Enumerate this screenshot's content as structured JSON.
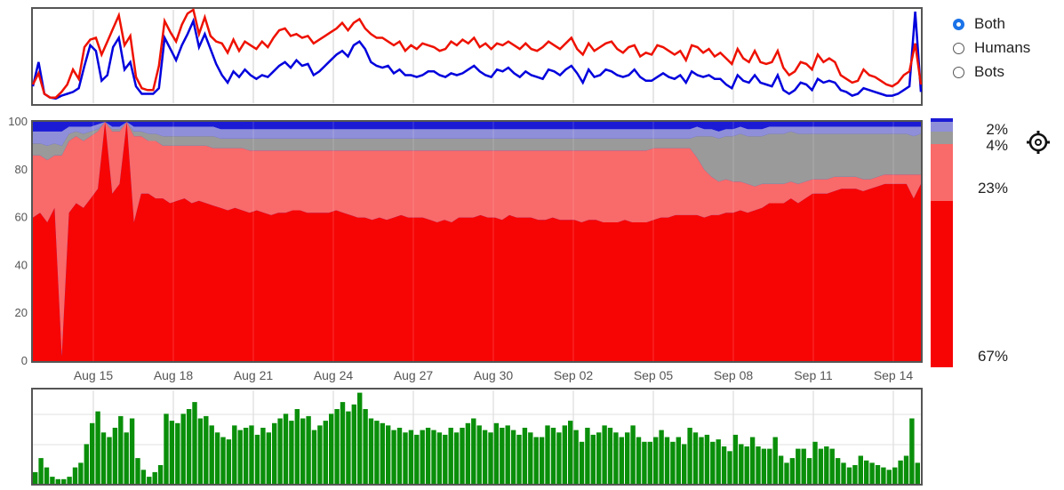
{
  "legend": {
    "options": [
      {
        "label": "Both",
        "selected": true
      },
      {
        "label": "Humans",
        "selected": false
      },
      {
        "label": "Bots",
        "selected": false
      }
    ],
    "percentages": [
      {
        "label": "2%",
        "color": "#1b1bd6"
      },
      {
        "label": "4%",
        "color": "#8f8fd9"
      },
      {
        "label": "23%",
        "color": "#f96a6a"
      },
      {
        "label": "67%",
        "color": "#f70505"
      }
    ],
    "settings_icon": "gear-icon"
  },
  "colors": {
    "dark_blue": "#1b1bd6",
    "light_blue": "#8f8fd9",
    "gray": "#9a9a9a",
    "light_red": "#f96a6a",
    "red": "#f70505",
    "green": "#0a8f0a",
    "overview_blue": "#0000dd",
    "overview_red": "#ee1100"
  },
  "chart_data": [
    {
      "type": "line",
      "id": "overview",
      "x_range": [
        "Aug 12",
        "Sep 15"
      ],
      "series": [
        {
          "id": "blue",
          "values": [
            18,
            44,
            10,
            6,
            5,
            8,
            10,
            12,
            16,
            40,
            62,
            56,
            24,
            30,
            60,
            70,
            36,
            44,
            18,
            10,
            10,
            10,
            16,
            70,
            58,
            46,
            62,
            74,
            88,
            60,
            74,
            58,
            42,
            30,
            22,
            34,
            28,
            36,
            30,
            26,
            30,
            28,
            34,
            40,
            44,
            38,
            46,
            40,
            42,
            30,
            34,
            40,
            46,
            52,
            56,
            50,
            62,
            66,
            58,
            44,
            40,
            38,
            40,
            32,
            36,
            30,
            30,
            28,
            30,
            34,
            34,
            30,
            28,
            32,
            30,
            32,
            36,
            40,
            34,
            30,
            28,
            36,
            34,
            38,
            32,
            28,
            34,
            30,
            28,
            26,
            36,
            34,
            30,
            36,
            40,
            32,
            22,
            36,
            28,
            30,
            36,
            34,
            30,
            28,
            30,
            36,
            28,
            24,
            24,
            28,
            32,
            28,
            26,
            30,
            22,
            34,
            30,
            28,
            30,
            26,
            26,
            20,
            16,
            30,
            24,
            22,
            30,
            22,
            20,
            18,
            30,
            14,
            10,
            14,
            22,
            20,
            14,
            26,
            22,
            24,
            22,
            14,
            12,
            8,
            10,
            16,
            14,
            12,
            10,
            8,
            8,
            10,
            14,
            18,
            98,
            12
          ]
        },
        {
          "id": "red",
          "values": [
            20,
            32,
            10,
            6,
            6,
            12,
            20,
            36,
            26,
            60,
            68,
            70,
            52,
            66,
            80,
            94,
            62,
            72,
            28,
            16,
            14,
            14,
            40,
            88,
            76,
            66,
            84,
            96,
            100,
            74,
            92,
            72,
            66,
            64,
            54,
            68,
            56,
            66,
            62,
            58,
            66,
            60,
            70,
            78,
            80,
            72,
            74,
            70,
            72,
            64,
            68,
            72,
            76,
            80,
            86,
            78,
            86,
            90,
            80,
            74,
            70,
            70,
            66,
            62,
            66,
            56,
            62,
            58,
            64,
            62,
            60,
            56,
            58,
            66,
            62,
            68,
            64,
            70,
            60,
            64,
            58,
            64,
            62,
            66,
            62,
            58,
            64,
            58,
            56,
            60,
            66,
            62,
            58,
            64,
            70,
            58,
            52,
            64,
            56,
            60,
            64,
            66,
            58,
            54,
            60,
            62,
            50,
            54,
            52,
            62,
            60,
            56,
            52,
            56,
            46,
            62,
            60,
            54,
            58,
            50,
            54,
            48,
            42,
            58,
            48,
            44,
            56,
            44,
            42,
            44,
            56,
            38,
            30,
            34,
            44,
            42,
            36,
            52,
            44,
            48,
            44,
            30,
            26,
            22,
            24,
            36,
            30,
            28,
            24,
            20,
            18,
            22,
            30,
            34,
            64,
            20
          ]
        }
      ]
    },
    {
      "type": "area",
      "id": "main",
      "stacked_percent": true,
      "ylim": [
        0,
        100
      ],
      "yticks": [
        0,
        20,
        40,
        60,
        80,
        100
      ],
      "xticks": [
        "Aug 15",
        "Aug 18",
        "Aug 21",
        "Aug 24",
        "Aug 27",
        "Aug 30",
        "Sep 02",
        "Sep 05",
        "Sep 08",
        "Sep 11",
        "Sep 14"
      ],
      "series": [
        {
          "id": "red",
          "values": [
            60,
            62,
            58,
            64,
            2,
            62,
            66,
            64,
            68,
            72,
            100,
            70,
            74,
            100,
            58,
            70,
            70,
            68,
            68,
            66,
            67,
            68,
            66,
            67,
            66,
            65,
            64,
            63,
            64,
            63,
            62,
            63,
            62,
            61,
            62,
            62,
            63,
            63,
            62,
            62,
            62,
            62,
            63,
            62,
            61,
            60,
            60,
            59,
            60,
            59,
            60,
            61,
            60,
            60,
            60,
            59,
            58,
            59,
            58,
            60,
            60,
            60,
            61,
            60,
            60,
            59,
            61,
            60,
            60,
            60,
            59,
            59,
            60,
            59,
            59,
            59,
            58,
            59,
            59,
            58,
            58,
            58,
            59,
            58,
            58,
            58,
            59,
            60,
            60,
            61,
            61,
            61,
            61,
            60,
            61,
            61,
            62,
            62,
            63,
            62,
            63,
            64,
            66,
            66,
            66,
            68,
            66,
            68,
            70,
            70,
            70,
            71,
            72,
            72,
            72,
            71,
            72,
            73,
            74,
            74,
            74,
            74,
            68,
            74
          ]
        },
        {
          "id": "lightred",
          "values": [
            26,
            24,
            26,
            22,
            84,
            30,
            28,
            28,
            26,
            24,
            0,
            26,
            22,
            0,
            36,
            24,
            22,
            24,
            22,
            24,
            23,
            22,
            24,
            23,
            24,
            24,
            25,
            26,
            25,
            26,
            26,
            25,
            26,
            27,
            26,
            26,
            25,
            25,
            26,
            26,
            26,
            26,
            25,
            26,
            27,
            28,
            28,
            29,
            28,
            29,
            28,
            27,
            28,
            28,
            28,
            29,
            30,
            29,
            30,
            28,
            28,
            28,
            27,
            28,
            28,
            29,
            27,
            28,
            28,
            28,
            29,
            29,
            28,
            29,
            29,
            29,
            30,
            29,
            29,
            30,
            30,
            30,
            29,
            30,
            30,
            30,
            30,
            29,
            29,
            28,
            28,
            28,
            24,
            20,
            16,
            14,
            14,
            13,
            12,
            12,
            10,
            10,
            8,
            8,
            8,
            7,
            8,
            7,
            6,
            6,
            6,
            6,
            5,
            5,
            5,
            5,
            4,
            4,
            4,
            4,
            4,
            4,
            10,
            4
          ]
        },
        {
          "id": "gray",
          "values": [
            5,
            5,
            6,
            5,
            4,
            3,
            2,
            3,
            2,
            1,
            0,
            1,
            1,
            0,
            2,
            2,
            3,
            3,
            4,
            4,
            4,
            4,
            4,
            4,
            4,
            5,
            4,
            4,
            4,
            4,
            5,
            5,
            5,
            5,
            5,
            5,
            5,
            5,
            5,
            5,
            5,
            5,
            5,
            5,
            5,
            5,
            5,
            5,
            5,
            5,
            5,
            5,
            5,
            5,
            5,
            5,
            5,
            5,
            5,
            5,
            5,
            5,
            5,
            5,
            5,
            5,
            5,
            5,
            5,
            5,
            5,
            5,
            5,
            5,
            5,
            5,
            5,
            5,
            5,
            5,
            5,
            5,
            5,
            5,
            5,
            5,
            4,
            4,
            4,
            4,
            4,
            4,
            9,
            14,
            17,
            18,
            18,
            19,
            20,
            20,
            21,
            20,
            21,
            21,
            21,
            21,
            21,
            20,
            19,
            19,
            19,
            18,
            18,
            18,
            18,
            19,
            19,
            18,
            17,
            17,
            17,
            17,
            16,
            17
          ]
        },
        {
          "id": "lightblue",
          "values": [
            5,
            5,
            6,
            5,
            6,
            3,
            2,
            3,
            2,
            2,
            0,
            1,
            1,
            0,
            2,
            2,
            3,
            3,
            4,
            4,
            4,
            4,
            4,
            4,
            4,
            4,
            4,
            4,
            4,
            4,
            4,
            4,
            4,
            4,
            4,
            4,
            4,
            4,
            4,
            4,
            4,
            4,
            4,
            4,
            4,
            4,
            4,
            4,
            4,
            4,
            4,
            4,
            4,
            4,
            4,
            4,
            4,
            4,
            4,
            4,
            4,
            4,
            4,
            4,
            4,
            4,
            4,
            4,
            4,
            4,
            4,
            4,
            4,
            4,
            4,
            4,
            4,
            4,
            4,
            4,
            4,
            4,
            4,
            4,
            4,
            4,
            4,
            4,
            4,
            4,
            4,
            4,
            4,
            3,
            3,
            3,
            3,
            3,
            3,
            3,
            3,
            3,
            3,
            3,
            3,
            2,
            3,
            3,
            3,
            3,
            3,
            3,
            3,
            3,
            3,
            3,
            3,
            3,
            3,
            3,
            3,
            3,
            4,
            3
          ]
        },
        {
          "id": "darkblue",
          "values": [
            4,
            4,
            4,
            4,
            4,
            2,
            2,
            2,
            2,
            1,
            0,
            2,
            2,
            0,
            2,
            2,
            2,
            2,
            2,
            2,
            2,
            2,
            2,
            2,
            2,
            2,
            2,
            2,
            2,
            2,
            3,
            3,
            3,
            3,
            3,
            3,
            3,
            3,
            3,
            3,
            3,
            3,
            3,
            3,
            3,
            3,
            3,
            3,
            3,
            3,
            3,
            3,
            3,
            3,
            3,
            3,
            3,
            3,
            3,
            3,
            3,
            3,
            3,
            3,
            3,
            3,
            3,
            3,
            3,
            3,
            3,
            3,
            3,
            3,
            3,
            3,
            3,
            3,
            3,
            3,
            3,
            3,
            3,
            3,
            3,
            3,
            2,
            2,
            2,
            2,
            2,
            2,
            2,
            2,
            2,
            2,
            2,
            2,
            2,
            2,
            2,
            2,
            2,
            2,
            2,
            2,
            2,
            2,
            2,
            2,
            2,
            2,
            2,
            2,
            2,
            2,
            2,
            2,
            2,
            2,
            2,
            2,
            2,
            2
          ]
        }
      ]
    },
    {
      "type": "bar",
      "id": "volume",
      "values": [
        10,
        22,
        14,
        6,
        4,
        4,
        6,
        14,
        18,
        34,
        52,
        62,
        44,
        40,
        48,
        58,
        44,
        56,
        22,
        12,
        6,
        10,
        16,
        60,
        54,
        52,
        60,
        64,
        70,
        56,
        58,
        50,
        44,
        40,
        38,
        50,
        46,
        48,
        50,
        42,
        48,
        44,
        52,
        56,
        60,
        54,
        64,
        56,
        58,
        46,
        50,
        54,
        60,
        64,
        70,
        62,
        68,
        78,
        64,
        56,
        54,
        52,
        50,
        46,
        48,
        44,
        46,
        42,
        46,
        48,
        46,
        44,
        42,
        48,
        44,
        48,
        52,
        56,
        50,
        46,
        44,
        52,
        48,
        50,
        46,
        42,
        48,
        44,
        40,
        40,
        50,
        48,
        44,
        50,
        54,
        46,
        36,
        48,
        42,
        44,
        50,
        48,
        44,
        40,
        44,
        50,
        40,
        36,
        36,
        40,
        46,
        40,
        36,
        40,
        34,
        48,
        44,
        40,
        42,
        36,
        38,
        32,
        28,
        42,
        34,
        32,
        40,
        32,
        30,
        30,
        40,
        24,
        18,
        22,
        30,
        30,
        22,
        36,
        30,
        32,
        30,
        22,
        18,
        14,
        16,
        24,
        20,
        18,
        16,
        14,
        12,
        14,
        20,
        24,
        56,
        18
      ]
    }
  ]
}
